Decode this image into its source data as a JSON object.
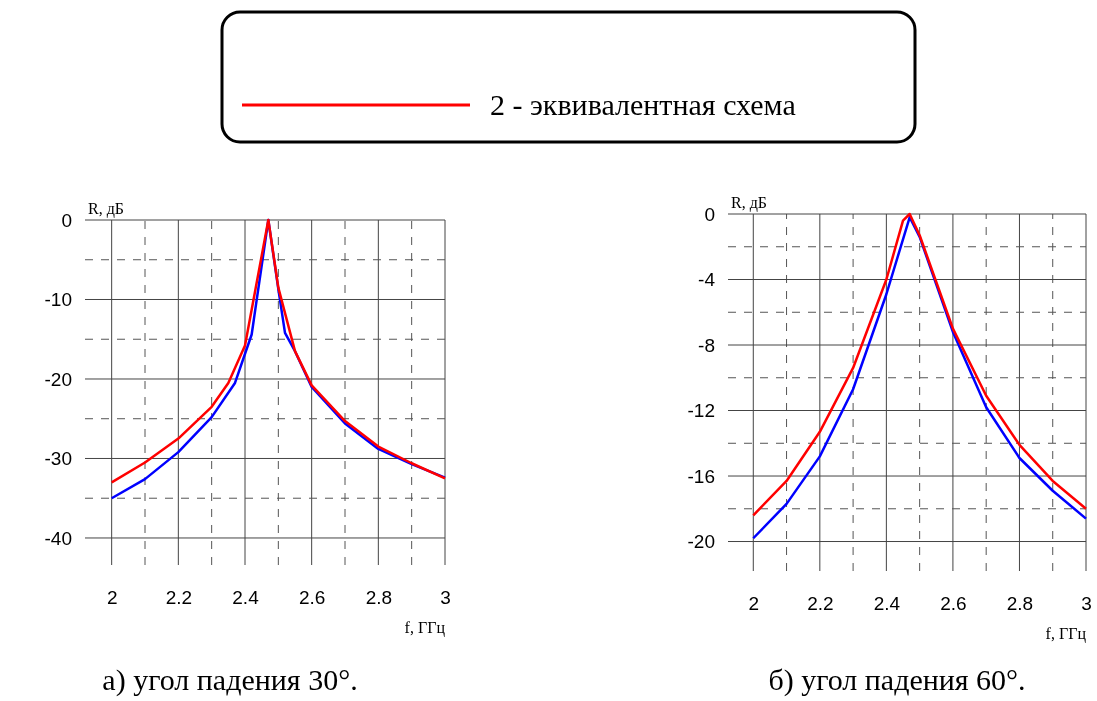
{
  "chart_data": [
    {
      "type": "line",
      "xlabel": "f, ГГц",
      "ylabel": "R, дБ",
      "xlim": [
        1.92,
        3
      ],
      "ylim": [
        -43.4,
        0
      ],
      "xticks": [
        2,
        {
          "value": 2.1,
          "label": null
        },
        2.2,
        {
          "value": 2.3,
          "label": null
        },
        2.4,
        {
          "value": 2.5,
          "label": null
        },
        2.6,
        {
          "value": 2.7,
          "label": null
        },
        2.8,
        {
          "value": 2.9,
          "label": null
        },
        3
      ],
      "yticks": [
        {
          "value": -40,
          "label": "-40"
        },
        {
          "value": -35,
          "label": null
        },
        {
          "value": -30,
          "label": "-30"
        },
        {
          "value": -25,
          "label": null
        },
        {
          "value": -20,
          "label": "-20"
        },
        {
          "value": -15,
          "label": null
        },
        {
          "value": -10,
          "label": "-10"
        },
        {
          "value": -5,
          "label": null
        },
        0
      ],
      "grid": true,
      "legend": "top",
      "line_style": "solid",
      "annotations": [
        "а) угол падения 30°."
      ],
      "series": [
        {
          "color": "#0000ff",
          "x": [
            2,
            2.1,
            2.2,
            2.3,
            2.37,
            2.42,
            2.47,
            2.5,
            2.52,
            2.55,
            2.6,
            2.7,
            2.8,
            2.9,
            3
          ],
          "values": [
            -35,
            -32.6,
            -29.2,
            -24.8,
            -20.5,
            -14.4,
            0,
            -8.7,
            -14.2,
            -16.5,
            -21,
            -25.6,
            -28.8,
            -30.7,
            -32.4
          ]
        },
        {
          "name": "2 - эквивалентная схема",
          "color": "#ff0000",
          "x": [
            2,
            2.1,
            2.2,
            2.3,
            2.35,
            2.4,
            2.47,
            2.5,
            2.55,
            2.6,
            2.7,
            2.8,
            2.9,
            3
          ],
          "values": [
            -33,
            -30.5,
            -27.5,
            -23.5,
            -20.5,
            -15.8,
            0,
            -8.5,
            -16.5,
            -20.8,
            -25.3,
            -28.5,
            -30.6,
            -32.5
          ]
        }
      ]
    },
    {
      "type": "line",
      "xlabel": "f, ГГц",
      "ylabel": "R, дБ",
      "xlim": [
        1.924,
        3
      ],
      "ylim": [
        -21.8,
        0
      ],
      "xticks": [
        2,
        {
          "value": 2.1,
          "label": null
        },
        2.2,
        {
          "value": 2.3,
          "label": null
        },
        2.4,
        {
          "value": 2.5,
          "label": null
        },
        2.6,
        {
          "value": 2.7,
          "label": null
        },
        2.8,
        {
          "value": 2.9,
          "label": null
        },
        3
      ],
      "yticks": [
        {
          "value": -20,
          "label": "-20"
        },
        {
          "value": -18,
          "label": null
        },
        {
          "value": -16,
          "label": "-16"
        },
        {
          "value": -14,
          "label": null
        },
        {
          "value": -12,
          "label": "-12"
        },
        {
          "value": -10,
          "label": null
        },
        {
          "value": -8,
          "label": "-8"
        },
        {
          "value": -6,
          "label": null
        },
        {
          "value": -4,
          "label": "-4"
        },
        {
          "value": -2,
          "label": null
        },
        0
      ],
      "grid": true,
      "line_style": "solid",
      "annotations": [
        "б) угол падения 60°."
      ],
      "series": [
        {
          "color": "#0000ff",
          "x": [
            2,
            2.1,
            2.2,
            2.3,
            2.4,
            2.47,
            2.5,
            2.6,
            2.7,
            2.8,
            2.9,
            3
          ],
          "values": [
            -19.8,
            -17.7,
            -14.8,
            -10.7,
            -4.9,
            -0.2,
            -1.4,
            -7.2,
            -11.8,
            -14.9,
            -16.9,
            -18.6
          ]
        },
        {
          "color": "#ff0000",
          "x": [
            2,
            2.1,
            2.2,
            2.3,
            2.4,
            2.45,
            2.47,
            2.5,
            2.6,
            2.7,
            2.8,
            2.9,
            3
          ],
          "values": [
            -18.4,
            -16.3,
            -13.3,
            -9.4,
            -4.0,
            -0.4,
            0,
            -1.3,
            -7.0,
            -11.1,
            -14.1,
            -16.3,
            -18.0
          ]
        }
      ]
    }
  ]
}
